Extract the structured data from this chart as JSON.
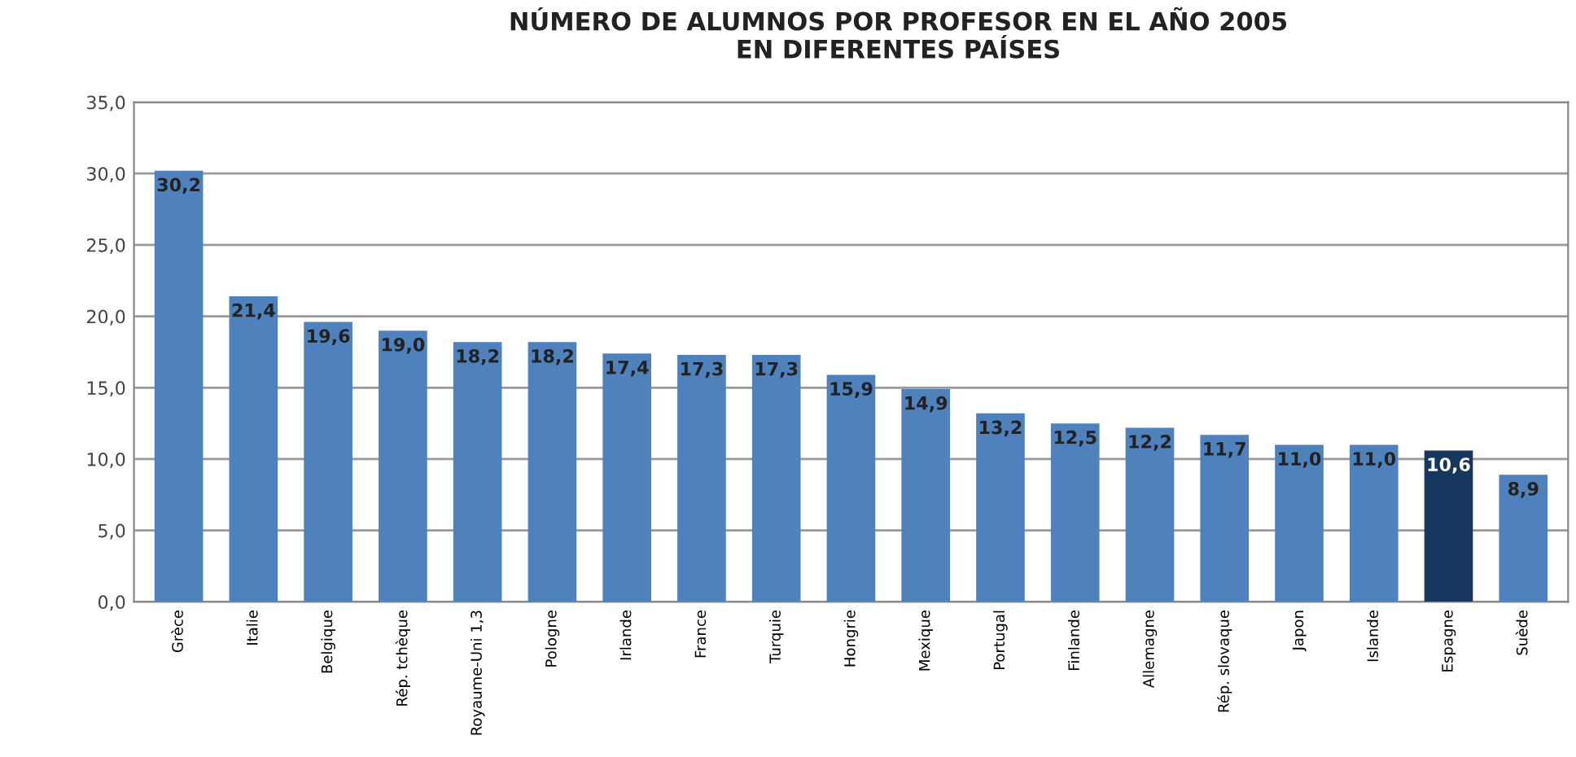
{
  "chart_data": {
    "type": "bar",
    "title": "NÚMERO DE ALUMNOS POR PROFESOR EN EL AÑO 2005\nEN DIFERENTES PAÍSES",
    "categories": [
      "Grèce",
      "Italie",
      "Belgique",
      "Rép. tchèque",
      "Royaume-Uni 1,3",
      "Pologne",
      "Irlande",
      "France",
      "Turquie",
      "Hongrie",
      "Mexique",
      "Portugal",
      "Finlande",
      "Allemagne",
      "Rép. slovaque",
      "Japon",
      "Islande",
      "Espagne",
      "Suède"
    ],
    "values": [
      30.2,
      21.4,
      19.6,
      19.0,
      18.2,
      18.2,
      17.4,
      17.3,
      17.3,
      15.9,
      14.9,
      13.2,
      12.5,
      12.2,
      11.7,
      11.0,
      11.0,
      10.6,
      8.9
    ],
    "value_labels": [
      "30,2",
      "21,4",
      "19,6",
      "19,0",
      "18,2",
      "18,2",
      "17,4",
      "17,3",
      "17,3",
      "15,9",
      "14,9",
      "13,2",
      "12,5",
      "12,2",
      "11,7",
      "11,0",
      "11,0",
      "10,6",
      "8,9"
    ],
    "colors": [
      "#4f81bd",
      "#4f81bd",
      "#4f81bd",
      "#4f81bd",
      "#4f81bd",
      "#4f81bd",
      "#4f81bd",
      "#4f81bd",
      "#4f81bd",
      "#4f81bd",
      "#4f81bd",
      "#4f81bd",
      "#4f81bd",
      "#4f81bd",
      "#4f81bd",
      "#4f81bd",
      "#4f81bd",
      "#17375e",
      "#4f81bd"
    ],
    "ylim": [
      0,
      35
    ],
    "yticks": [
      {
        "value": 0,
        "label": "0,0"
      },
      {
        "value": 5,
        "label": "5,0"
      },
      {
        "value": 10,
        "label": "10,0"
      },
      {
        "value": 15,
        "label": "15,0"
      },
      {
        "value": 20,
        "label": "20,0"
      },
      {
        "value": 25,
        "label": "25,0"
      },
      {
        "value": 30,
        "label": "30,0"
      },
      {
        "value": 35,
        "label": "35,0"
      }
    ],
    "grid": "y",
    "legend": false
  }
}
